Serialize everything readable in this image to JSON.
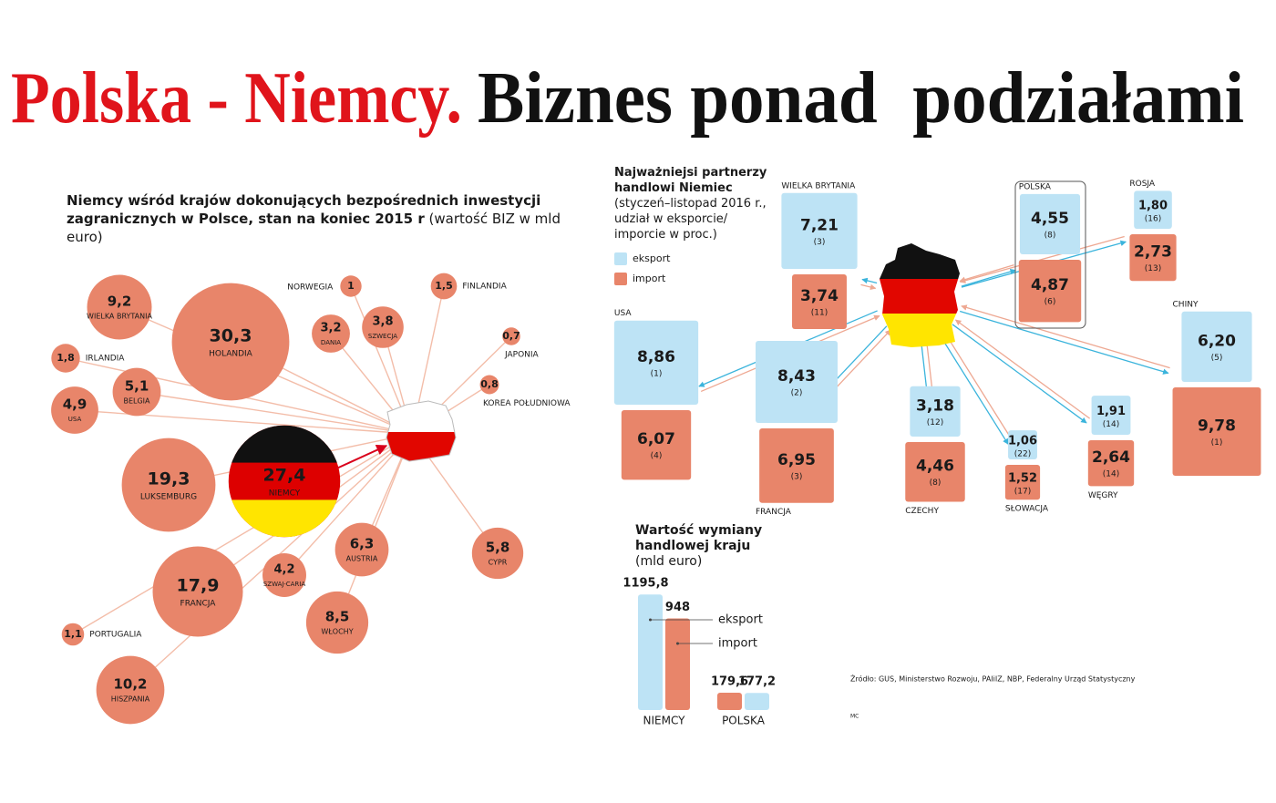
{
  "header": {
    "title_red": "Polska - Niemcy.",
    "title_black": "Biznes ponad  podziałami"
  },
  "chart_data": [
    {
      "type": "bubble",
      "title": "Niemcy wśród krajów dokonujących bezpośrednich inwestycji zagranicznych w Polsce, stan na koniec 2015 r",
      "subtitle": "(wartość BIZ w mld euro)",
      "categories": [
        "HOLANDIA",
        "NIEMCY",
        "LUKSEMBURG",
        "FRANCJA",
        "HISZPANIA",
        "WIELKA BRYTANIA",
        "WŁOCHY",
        "AUSTRIA",
        "CYPR",
        "BELGIA",
        "USA",
        "SZWAJ-CARIA",
        "SZWECJA",
        "DANIA",
        "IRLANDIA",
        "FINLANDIA",
        "PORTUGALIA",
        "NORWEGIA",
        "KOREA POŁUDNIOWA",
        "JAPONIA"
      ],
      "values": [
        30.3,
        27.4,
        19.3,
        17.9,
        10.2,
        9.2,
        8.5,
        6.3,
        5.8,
        5.1,
        4.9,
        4.2,
        3.8,
        3.2,
        1.8,
        1.5,
        1.1,
        1,
        0.8,
        0.7
      ],
      "value_labels": [
        "30,3",
        "27,4",
        "19,3",
        "17,9",
        "10,2",
        "9,2",
        "8,5",
        "6,3",
        "5,8",
        "5,1",
        "4,9",
        "4,2",
        "3,8",
        "3,2",
        "1,8",
        "1,5",
        "1,1",
        "1",
        "0,8",
        "0,7"
      ],
      "color": "#e8856a"
    },
    {
      "type": "square",
      "title": "Najważniejsi partnerzy handlowi Niemiec",
      "subtitle": "(styczeń–listopad 2016 r., udział w eksporcie/ imporcie w proc.)",
      "categories": [
        "WIELKA BRYTANIA",
        "POLSKA",
        "ROSJA",
        "USA",
        "FRANCJA",
        "CHINY",
        "CZECHY",
        "SŁOWACJA",
        "WĘGRY"
      ],
      "series": [
        {
          "name": "eksport",
          "color": "#bde3f5",
          "values": [
            7.21,
            4.55,
            1.8,
            8.86,
            8.43,
            6.2,
            3.18,
            1.06,
            1.91
          ],
          "value_labels": [
            "7,21",
            "4,55",
            "1,80",
            "8,86",
            "8,43",
            "6,20",
            "3,18",
            "1,06",
            "1,91"
          ],
          "rank_labels": [
            "(3)",
            "(8)",
            "(16)",
            "(1)",
            "(2)",
            "(5)",
            "(12)",
            "(22)",
            "(14)"
          ]
        },
        {
          "name": "import",
          "color": "#e8856a",
          "values": [
            3.74,
            4.87,
            2.73,
            6.07,
            6.95,
            9.78,
            4.46,
            1.52,
            2.64
          ],
          "value_labels": [
            "3,74",
            "4,87",
            "2,73",
            "6,07",
            "6,95",
            "9,78",
            "4,46",
            "1,52",
            "2,64"
          ],
          "rank_labels": [
            "(11)",
            "(6)",
            "(13)",
            "(4)",
            "(3)",
            "(1)",
            "(8)",
            "(17)",
            "(14)"
          ]
        }
      ]
    },
    {
      "type": "bar",
      "title": "Wartość wymiany handlowej kraju",
      "subtitle": "(mld euro)",
      "categories": [
        "NIEMCY",
        "POLSKA"
      ],
      "series": [
        {
          "name": "eksport",
          "color": "#bde3f5",
          "values": [
            1195.8,
            177.2
          ],
          "value_labels": [
            "1195,8",
            "177,2"
          ]
        },
        {
          "name": "import",
          "color": "#e8856a",
          "values": [
            948,
            179.6
          ],
          "value_labels": [
            "948",
            "179,6"
          ]
        }
      ]
    }
  ],
  "source": "Źródło: GUS, Ministerstwo Rozwoju, PAIiIZ, NBP, Federalny Urząd Statystyczny",
  "author": "MC"
}
